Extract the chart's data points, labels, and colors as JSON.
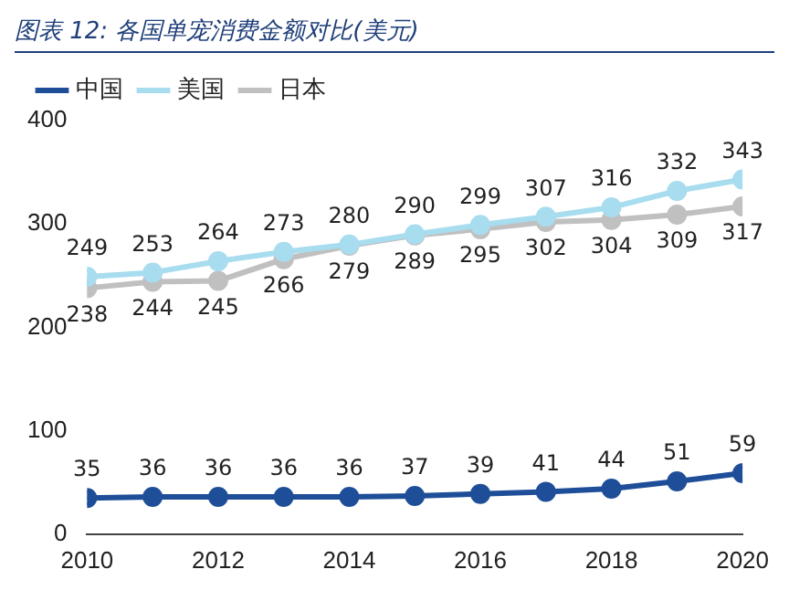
{
  "chart_data": {
    "type": "line",
    "title": "图表 12: 各国单宠消费金额对比(美元)",
    "x": [
      2010,
      2011,
      2012,
      2013,
      2014,
      2015,
      2016,
      2017,
      2018,
      2019,
      2020
    ],
    "series": [
      {
        "name": "中国",
        "color": "#1f4e99",
        "values": [
          35,
          36,
          36,
          36,
          36,
          37,
          39,
          41,
          44,
          51,
          59
        ]
      },
      {
        "name": "美国",
        "color": "#a8dcef",
        "values": [
          249,
          253,
          264,
          273,
          280,
          290,
          299,
          307,
          316,
          332,
          343
        ]
      },
      {
        "name": "日本",
        "color": "#c0c0c0",
        "values": [
          238,
          244,
          245,
          266,
          279,
          289,
          295,
          302,
          304,
          309,
          317
        ]
      }
    ],
    "xlim": [
      2010,
      2020
    ],
    "xticks": [
      2010,
      2012,
      2014,
      2016,
      2018,
      2020
    ],
    "ylim": [
      0,
      400
    ],
    "yticks": [
      0,
      100,
      200,
      300,
      400
    ],
    "grid": false,
    "legend": "top",
    "marker": "circle",
    "line_style": "solid",
    "data_labels": true
  }
}
